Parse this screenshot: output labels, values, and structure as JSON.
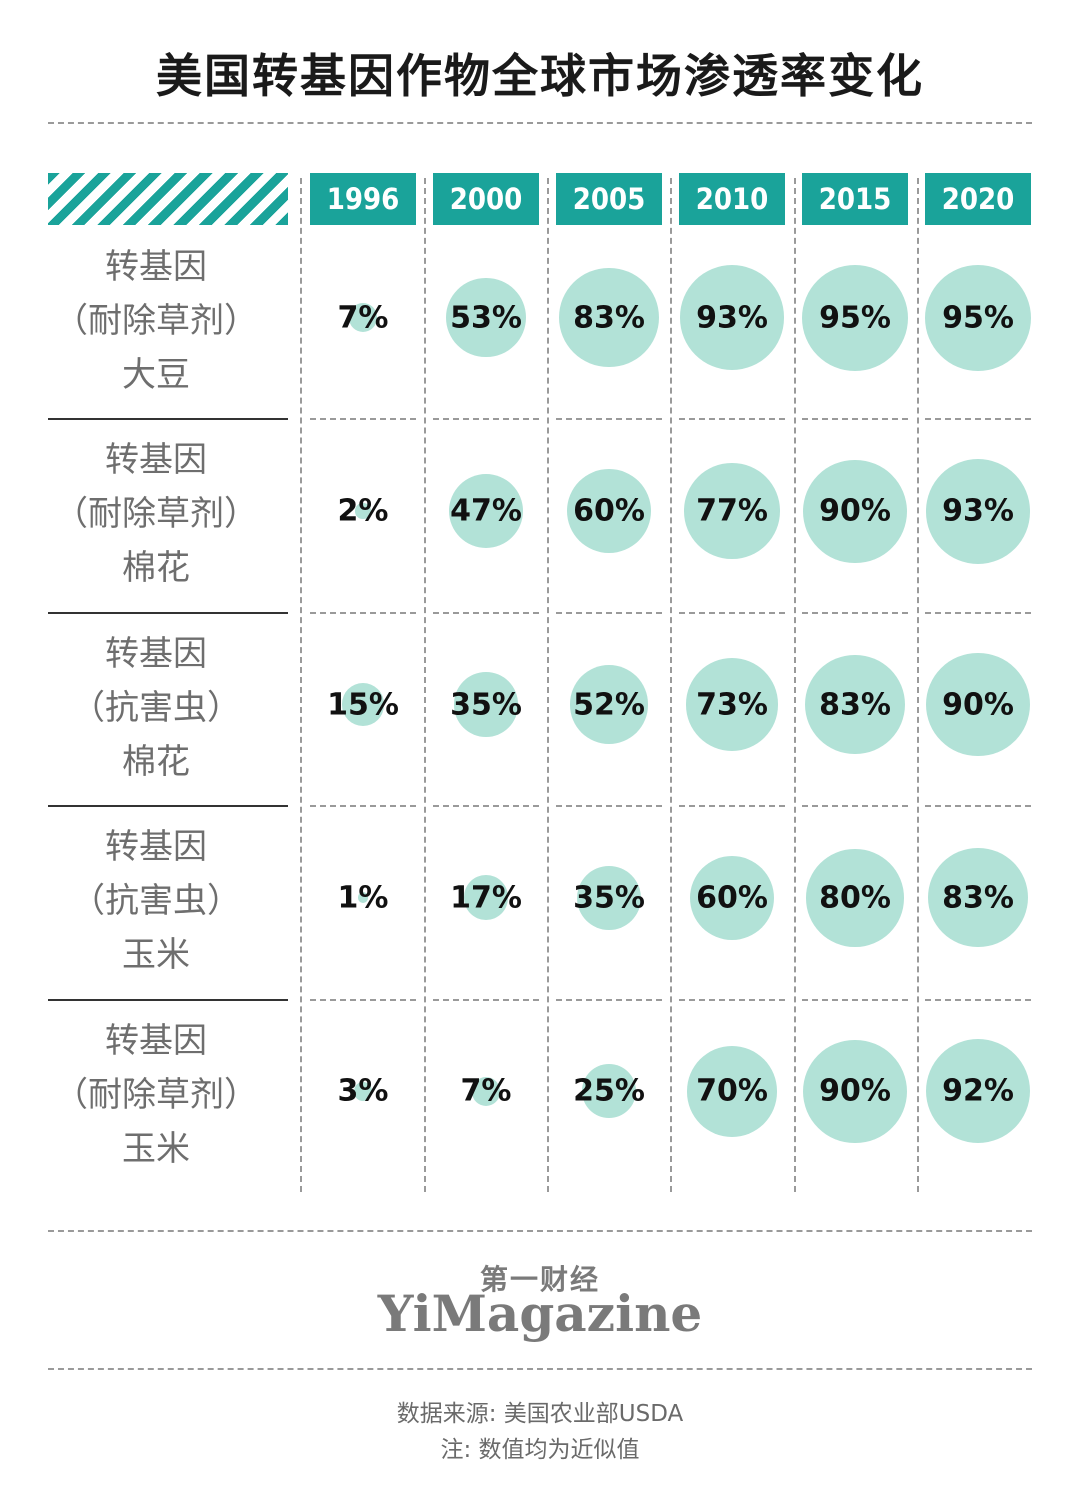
{
  "title": "美国转基因作物全球市场渗透率变化",
  "chart_data": {
    "type": "table",
    "columns": [
      "1996",
      "2000",
      "2005",
      "2010",
      "2015",
      "2020"
    ],
    "rows": [
      {
        "label_lines": [
          "转基因",
          "（耐除草剂）",
          "大豆"
        ],
        "values": [
          7,
          53,
          83,
          93,
          95,
          95
        ]
      },
      {
        "label_lines": [
          "转基因",
          "（耐除草剂）",
          "棉花"
        ],
        "values": [
          2,
          47,
          60,
          77,
          90,
          93
        ]
      },
      {
        "label_lines": [
          "转基因",
          "（抗害虫）",
          "棉花"
        ],
        "values": [
          15,
          35,
          52,
          73,
          83,
          90
        ]
      },
      {
        "label_lines": [
          "转基因",
          "（抗害虫）",
          "玉米"
        ],
        "values": [
          1,
          17,
          35,
          60,
          80,
          83
        ]
      },
      {
        "label_lines": [
          "转基因",
          "（耐除草剂）",
          "玉米"
        ],
        "values": [
          3,
          7,
          25,
          70,
          90,
          92
        ]
      }
    ],
    "value_suffix": "%"
  },
  "logo": {
    "cn": "第一财经",
    "en": "YiMagazine"
  },
  "footer": {
    "source": "数据来源: 美国农业部USDA",
    "note": "注: 数值均为近似值"
  },
  "colors": {
    "accent": "#1aa39a",
    "bubble": "#b2e2d7"
  }
}
